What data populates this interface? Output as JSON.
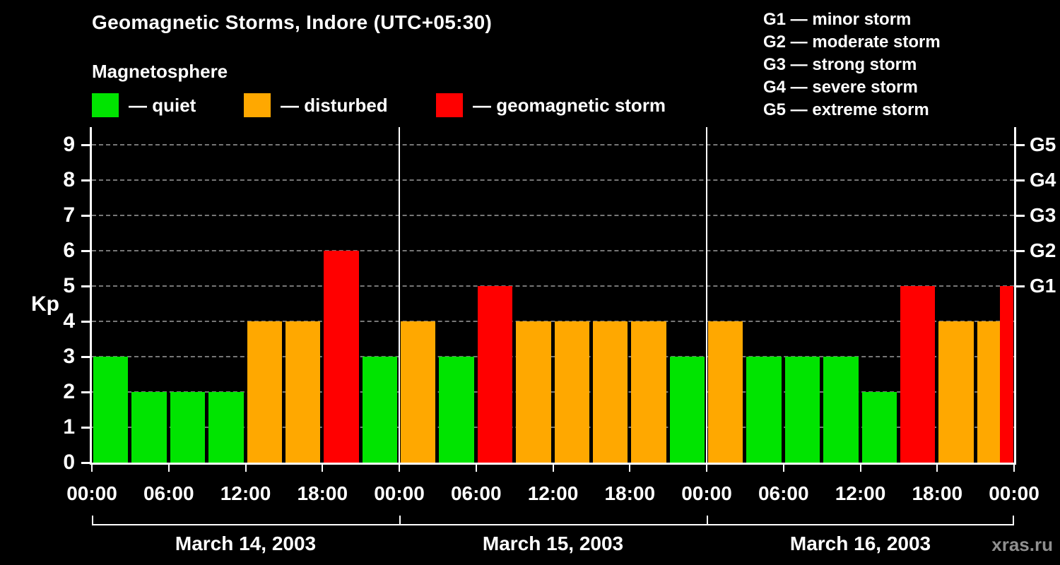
{
  "header": {
    "title": "Geomagnetic Storms, Indore (UTC+05:30)",
    "subtitle": "Magnetosphere"
  },
  "legend": {
    "items": [
      {
        "key": "quiet",
        "label": "— quiet",
        "color": "#00e400"
      },
      {
        "key": "disturbed",
        "label": "— disturbed",
        "color": "#ffa800"
      },
      {
        "key": "storm",
        "label": "— geomagnetic storm",
        "color": "#ff0000"
      }
    ]
  },
  "storm_scale_legend": {
    "items": [
      "G1 — minor storm",
      "G2 — moderate storm",
      "G3 — strong storm",
      "G4 — severe storm",
      "G5 — extreme storm"
    ]
  },
  "watermark": "xras.ru",
  "chart_data": {
    "type": "bar",
    "title": "Geomagnetic Storms, Indore (UTC+05:30)",
    "subtitle": "Magnetosphere",
    "ylabel": "Kp",
    "ylim": [
      0,
      9.5
    ],
    "yticks": [
      0,
      1,
      2,
      3,
      4,
      5,
      6,
      7,
      8,
      9
    ],
    "grid": "dashed horizontal at each Kp integer",
    "interval_hours": 3,
    "x_tick_labels": [
      "00:00",
      "06:00",
      "12:00",
      "18:00",
      "00:00",
      "06:00",
      "12:00",
      "18:00",
      "00:00",
      "06:00",
      "12:00",
      "18:00",
      "00:00"
    ],
    "right_axis_labels": [
      {
        "label": "G5",
        "kp": 9
      },
      {
        "label": "G4",
        "kp": 8
      },
      {
        "label": "G3",
        "kp": 7
      },
      {
        "label": "G2",
        "kp": 6
      },
      {
        "label": "G1",
        "kp": 5
      }
    ],
    "days": [
      {
        "label": "March 14, 2003",
        "values": [
          3,
          2,
          2,
          2,
          4,
          4,
          6,
          3
        ]
      },
      {
        "label": "March 15, 2003",
        "values": [
          4,
          3,
          5,
          4,
          4,
          4,
          4,
          3
        ]
      },
      {
        "label": "March 16, 2003",
        "values": [
          4,
          3,
          3,
          3,
          2,
          5,
          4,
          4
        ]
      }
    ],
    "partial_next_bar": {
      "kp": 5,
      "clipped": true
    },
    "colors": {
      "quiet": "#00e400",
      "disturbed": "#ffa800",
      "storm": "#ff0000"
    },
    "color_rule": "kp<=3 quiet, kp==4 disturbed, kp>=5 storm"
  }
}
